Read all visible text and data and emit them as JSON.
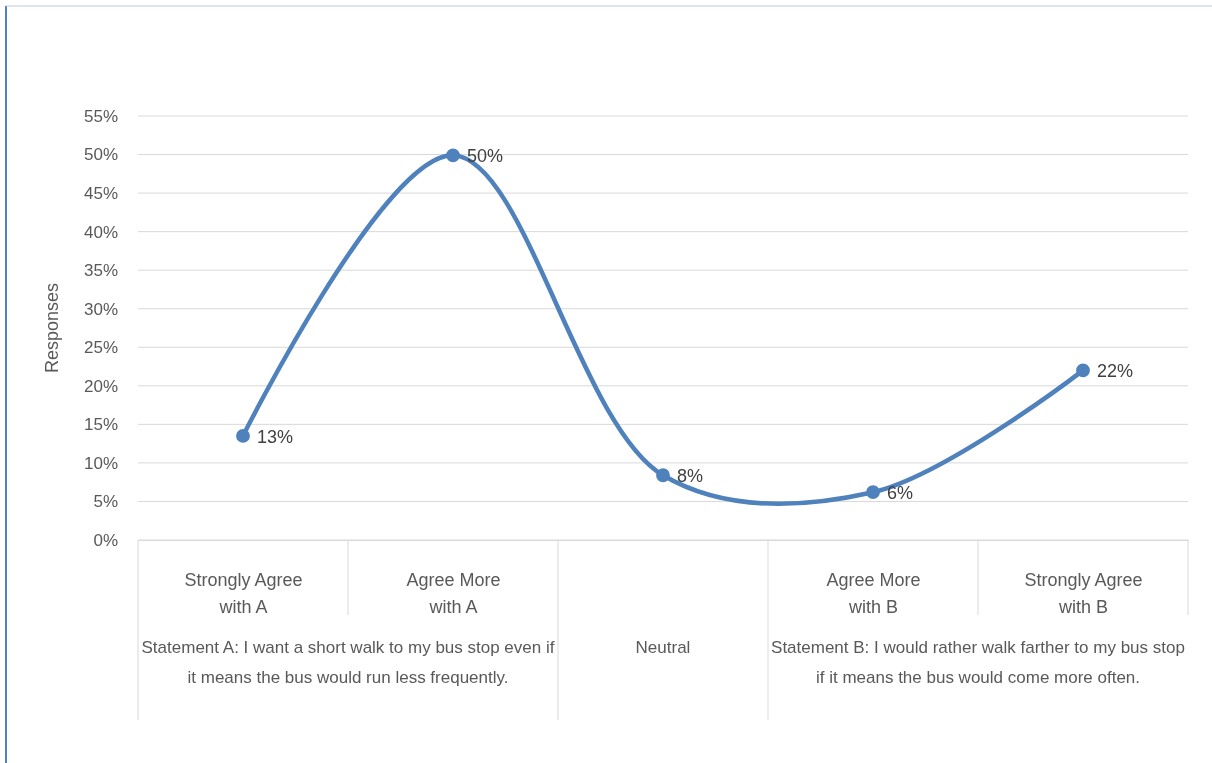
{
  "chart_data": {
    "type": "line",
    "ylabel": "Responses",
    "categories": [
      "Strongly Agree with A",
      "Agree More with A",
      null,
      "Agree More with B",
      "Strongly Agree with B"
    ],
    "series": [
      {
        "color": "#4f81bd",
        "values": [
          13.5,
          49.9,
          8.4,
          6.2,
          22.0
        ],
        "value_labels": [
          "13%",
          "50%",
          "8%",
          "6%",
          "22%"
        ]
      }
    ],
    "ylim": [
      0,
      55
    ],
    "yticks": [
      {
        "value": 0,
        "label": "0%"
      },
      {
        "value": 5,
        "label": "5%"
      },
      {
        "value": 10,
        "label": "10%"
      },
      {
        "value": 15,
        "label": "15%"
      },
      {
        "value": 20,
        "label": "20%"
      },
      {
        "value": 25,
        "label": "25%"
      },
      {
        "value": 30,
        "label": "30%"
      },
      {
        "value": 35,
        "label": "35%"
      },
      {
        "value": 40,
        "label": "40%"
      },
      {
        "value": 45,
        "label": "45%"
      },
      {
        "value": 50,
        "label": "50%"
      },
      {
        "value": 55,
        "label": "55%"
      }
    ],
    "annotations": [
      "Statement A: I want a short walk to my bus stop even if it means the bus would run less frequently.",
      "Neutral",
      "Statement B: I would rather walk farther to my bus stop if it means the bus would come more often."
    ],
    "grid": true,
    "marker": "circle",
    "line_style": "solid"
  }
}
